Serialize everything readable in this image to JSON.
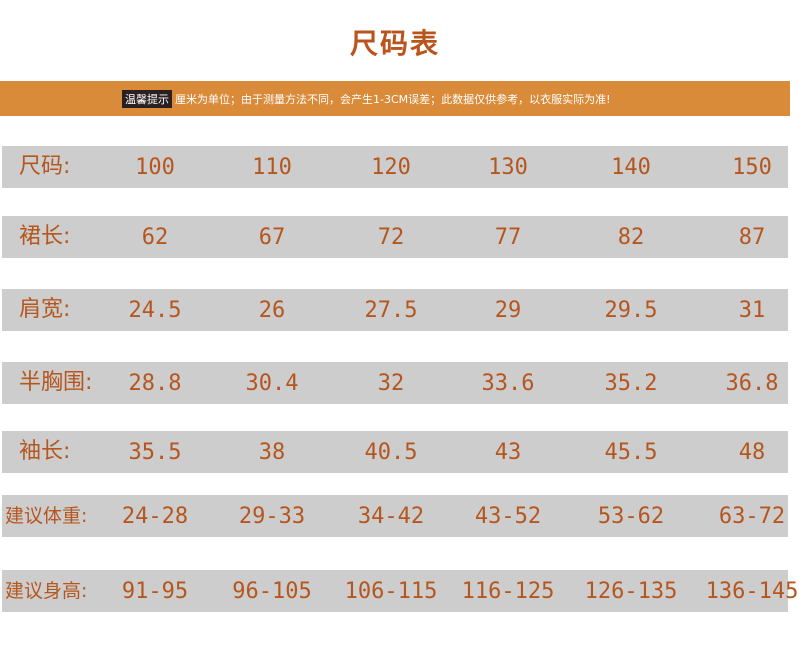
{
  "title": "尺码表",
  "notice": {
    "badge": "温馨提示",
    "text": "厘米为单位；由于测量方法不同，会产生1-3CM误差；此数据仅供参考，以衣服实际为准!"
  },
  "colors": {
    "accent": "#d98b3a",
    "text": "#b5561f",
    "row_bg": "#cdcdcd"
  },
  "rows": [
    {
      "label": "尺码:",
      "values": [
        "100",
        "110",
        "120",
        "130",
        "140",
        "150"
      ]
    },
    {
      "label": "裙长:",
      "values": [
        "62",
        "67",
        "72",
        "77",
        "82",
        "87"
      ]
    },
    {
      "label": "肩宽:",
      "values": [
        "24.5",
        "26",
        "27.5",
        "29",
        "29.5",
        "31"
      ]
    },
    {
      "label": "半胸围:",
      "values": [
        "28.8",
        "30.4",
        "32",
        "33.6",
        "35.2",
        "36.8"
      ]
    },
    {
      "label": "袖长:",
      "values": [
        "35.5",
        "38",
        "40.5",
        "43",
        "45.5",
        "48"
      ]
    },
    {
      "label": "建议体重:",
      "values": [
        "24-28",
        "29-33",
        "34-42",
        "43-52",
        "53-62",
        "63-72"
      ]
    },
    {
      "label": "建议身高:",
      "values": [
        "91-95",
        "96-105",
        "106-115",
        "116-125",
        "126-135",
        "136-145"
      ]
    }
  ]
}
